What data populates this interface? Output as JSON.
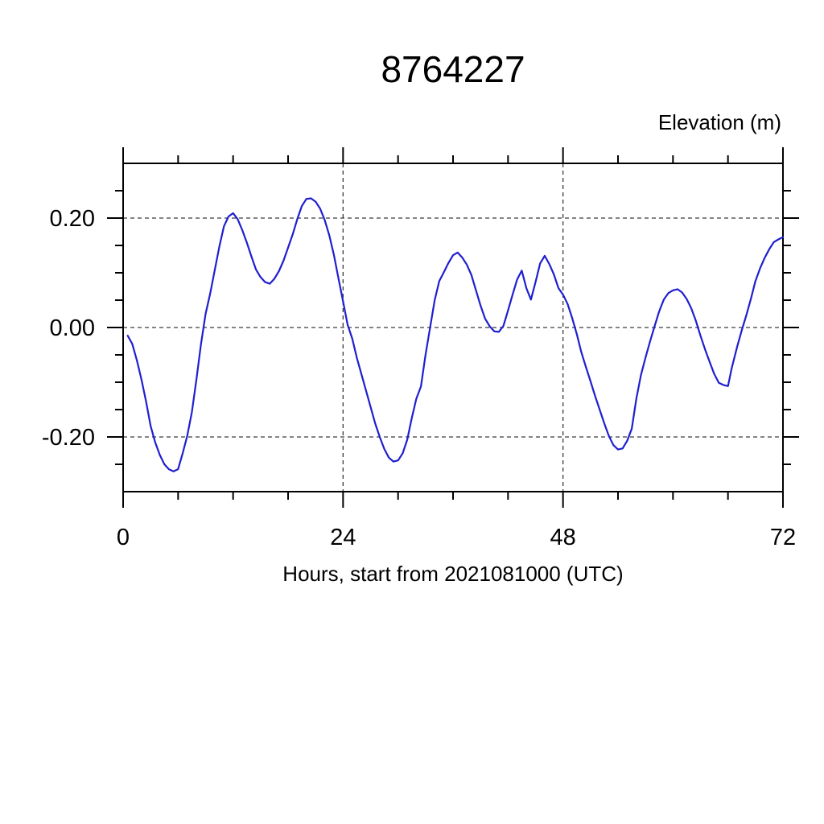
{
  "chart_data": {
    "type": "line",
    "title": "8764227",
    "ylabel": "Elevation (m)",
    "xlabel": "Hours, start from 2021081000 (UTC)",
    "xlim": [
      0,
      72
    ],
    "ylim": [
      -0.3,
      0.3
    ],
    "x_ticks": [
      {
        "value": 0,
        "label": "0"
      },
      {
        "value": 24,
        "label": "24"
      },
      {
        "value": 48,
        "label": "48"
      },
      {
        "value": 72,
        "label": "72"
      }
    ],
    "y_ticks": [
      {
        "value": -0.2,
        "label": "-0.20"
      },
      {
        "value": 0.0,
        "label": "0.00"
      },
      {
        "value": 0.2,
        "label": "0.20"
      }
    ],
    "x_minor_step": 6,
    "y_minor_step": 0.05,
    "x_gridlines": [
      24,
      48
    ],
    "y_gridlines": [
      -0.2,
      0.0,
      0.2
    ],
    "grid_style": "dashed",
    "line_color": "#1f1fd0",
    "series": [
      {
        "name": "elevation",
        "x": [
          0.5,
          1,
          1.5,
          2,
          2.5,
          3,
          3.5,
          4,
          4.5,
          5,
          5.5,
          6,
          6.5,
          7,
          7.5,
          8,
          8.5,
          9,
          9.5,
          10,
          10.5,
          11,
          11.5,
          12,
          12.5,
          13,
          13.5,
          14,
          14.5,
          15,
          15.5,
          16,
          16.5,
          17,
          17.5,
          18,
          18.5,
          19,
          19.5,
          20,
          20.5,
          21,
          21.5,
          22,
          22.5,
          23,
          23.5,
          24,
          24.5,
          25,
          25.5,
          26,
          26.5,
          27,
          27.5,
          28,
          28.5,
          29,
          29.5,
          30,
          30.5,
          31,
          31.5,
          32,
          32.5,
          33,
          33.5,
          34,
          34.5,
          35,
          35.5,
          36,
          36.5,
          37,
          37.5,
          38,
          38.5,
          39,
          39.5,
          40,
          40.5,
          41,
          41.5,
          42,
          42.5,
          43,
          43.5,
          44,
          44.5,
          45,
          45.5,
          46,
          46.5,
          47,
          47.5,
          48,
          48.5,
          49,
          49.5,
          50,
          50.5,
          51,
          51.5,
          52,
          52.5,
          53,
          53.5,
          54,
          54.5,
          55,
          55.5,
          56,
          56.5,
          57,
          57.5,
          58,
          58.5,
          59,
          59.5,
          60,
          60.5,
          61,
          61.5,
          62,
          62.5,
          63,
          63.5,
          64,
          64.5,
          65,
          65.5,
          66,
          66.4,
          67,
          67.5,
          68,
          68.5,
          69,
          69.5,
          70,
          70.5,
          71,
          71.5,
          72
        ],
        "y": [
          -0.015,
          -0.03,
          -0.06,
          -0.095,
          -0.135,
          -0.18,
          -0.21,
          -0.233,
          -0.25,
          -0.259,
          -0.263,
          -0.259,
          -0.23,
          -0.198,
          -0.155,
          -0.095,
          -0.03,
          0.025,
          0.062,
          0.105,
          0.148,
          0.185,
          0.203,
          0.209,
          0.198,
          0.178,
          0.155,
          0.13,
          0.106,
          0.092,
          0.083,
          0.08,
          0.089,
          0.103,
          0.122,
          0.146,
          0.17,
          0.198,
          0.222,
          0.235,
          0.236,
          0.23,
          0.217,
          0.196,
          0.168,
          0.133,
          0.09,
          0.048,
          0.005,
          -0.02,
          -0.055,
          -0.085,
          -0.115,
          -0.145,
          -0.175,
          -0.2,
          -0.222,
          -0.238,
          -0.245,
          -0.243,
          -0.23,
          -0.205,
          -0.165,
          -0.13,
          -0.108,
          -0.05,
          0.0,
          0.05,
          0.085,
          0.101,
          0.118,
          0.132,
          0.137,
          0.128,
          0.115,
          0.096,
          0.068,
          0.04,
          0.016,
          0.002,
          -0.007,
          -0.008,
          0.003,
          0.031,
          0.06,
          0.088,
          0.104,
          0.072,
          0.051,
          0.083,
          0.117,
          0.131,
          0.116,
          0.097,
          0.072,
          0.06,
          0.043,
          0.017,
          -0.012,
          -0.045,
          -0.072,
          -0.098,
          -0.125,
          -0.15,
          -0.175,
          -0.198,
          -0.215,
          -0.223,
          -0.221,
          -0.207,
          -0.185,
          -0.13,
          -0.087,
          -0.055,
          -0.025,
          0.003,
          0.03,
          0.051,
          0.063,
          0.068,
          0.07,
          0.064,
          0.052,
          0.035,
          0.012,
          -0.015,
          -0.04,
          -0.063,
          -0.085,
          -0.101,
          -0.105,
          -0.107,
          -0.075,
          -0.035,
          -0.005,
          0.022,
          0.052,
          0.085,
          0.108,
          0.127,
          0.143,
          0.156,
          0.161,
          0.165
        ]
      }
    ]
  }
}
